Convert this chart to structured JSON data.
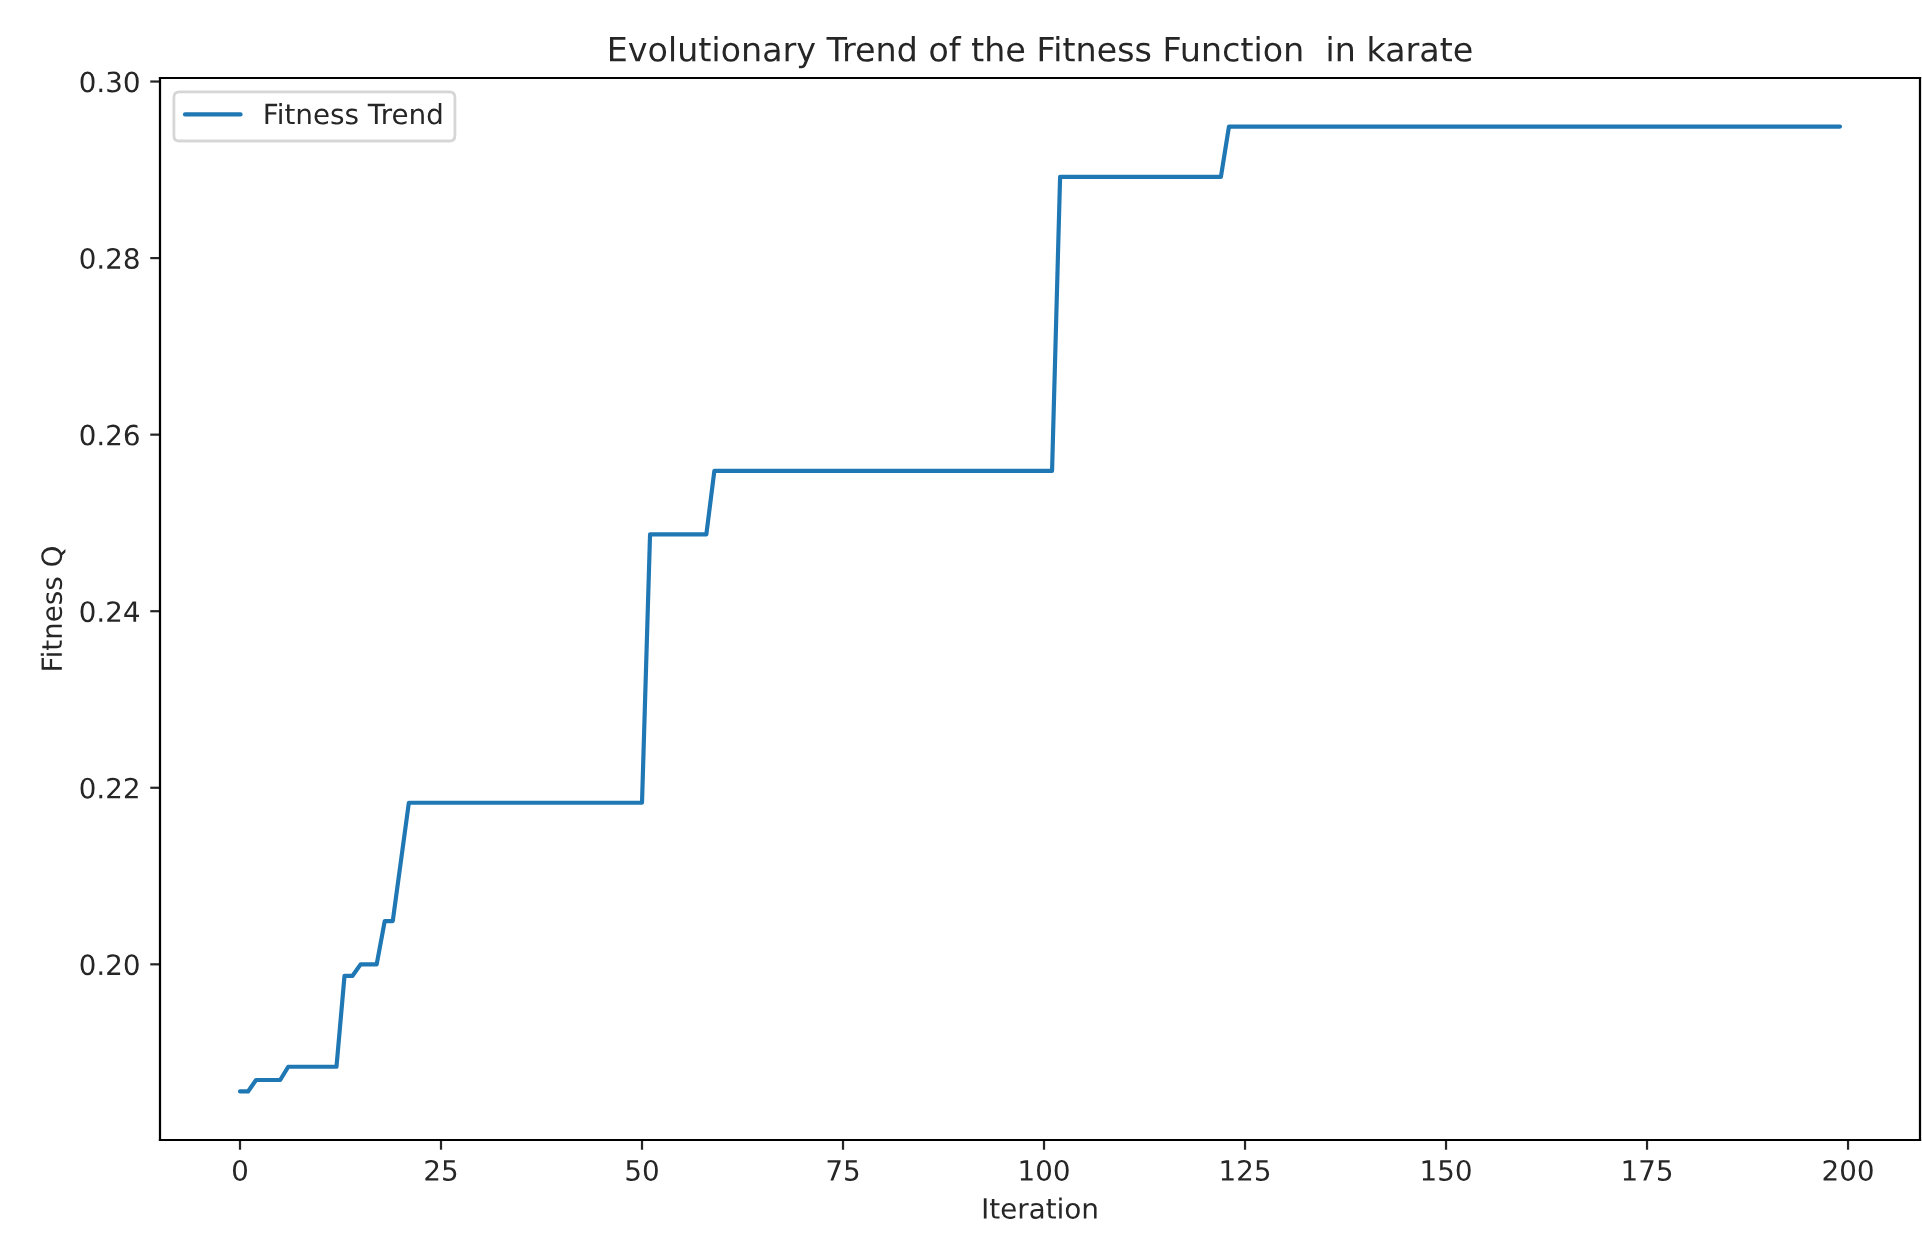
{
  "chart_data": {
    "type": "line",
    "title": "Evolutionary Trend of the Fitness Function  in karate",
    "xlabel": "Iteration",
    "ylabel": "Fitness Q",
    "series": [
      {
        "name": "Fitness Trend",
        "color": "#1f77b4",
        "x": [
          0,
          1,
          2,
          5,
          6,
          12,
          13,
          14,
          15,
          17,
          18,
          19,
          21,
          50,
          51,
          58,
          59,
          101,
          102,
          122,
          123,
          199
        ],
        "values": [
          0.1856,
          0.1856,
          0.1869,
          0.1869,
          0.1884,
          0.1884,
          0.1987,
          0.1987,
          0.2,
          0.2,
          0.2049,
          0.2049,
          0.2183,
          0.2183,
          0.2487,
          0.2487,
          0.2559,
          0.2559,
          0.2892,
          0.2892,
          0.2949,
          0.2949
        ]
      }
    ],
    "xlim": [
      -9.95,
      208.95
    ],
    "ylim": [
      0.1801,
      0.3004
    ],
    "xticks": [
      0,
      25,
      50,
      75,
      100,
      125,
      150,
      175,
      200
    ],
    "yticks": [
      {
        "value": 0.2,
        "label": "0.20"
      },
      {
        "value": 0.22,
        "label": "0.22"
      },
      {
        "value": 0.24,
        "label": "0.24"
      },
      {
        "value": 0.26,
        "label": "0.26"
      },
      {
        "value": 0.28,
        "label": "0.28"
      },
      {
        "value": 0.3,
        "label": "0.30"
      }
    ],
    "grid": false,
    "legend": "top left",
    "marker": "none",
    "line_style": "solid"
  }
}
